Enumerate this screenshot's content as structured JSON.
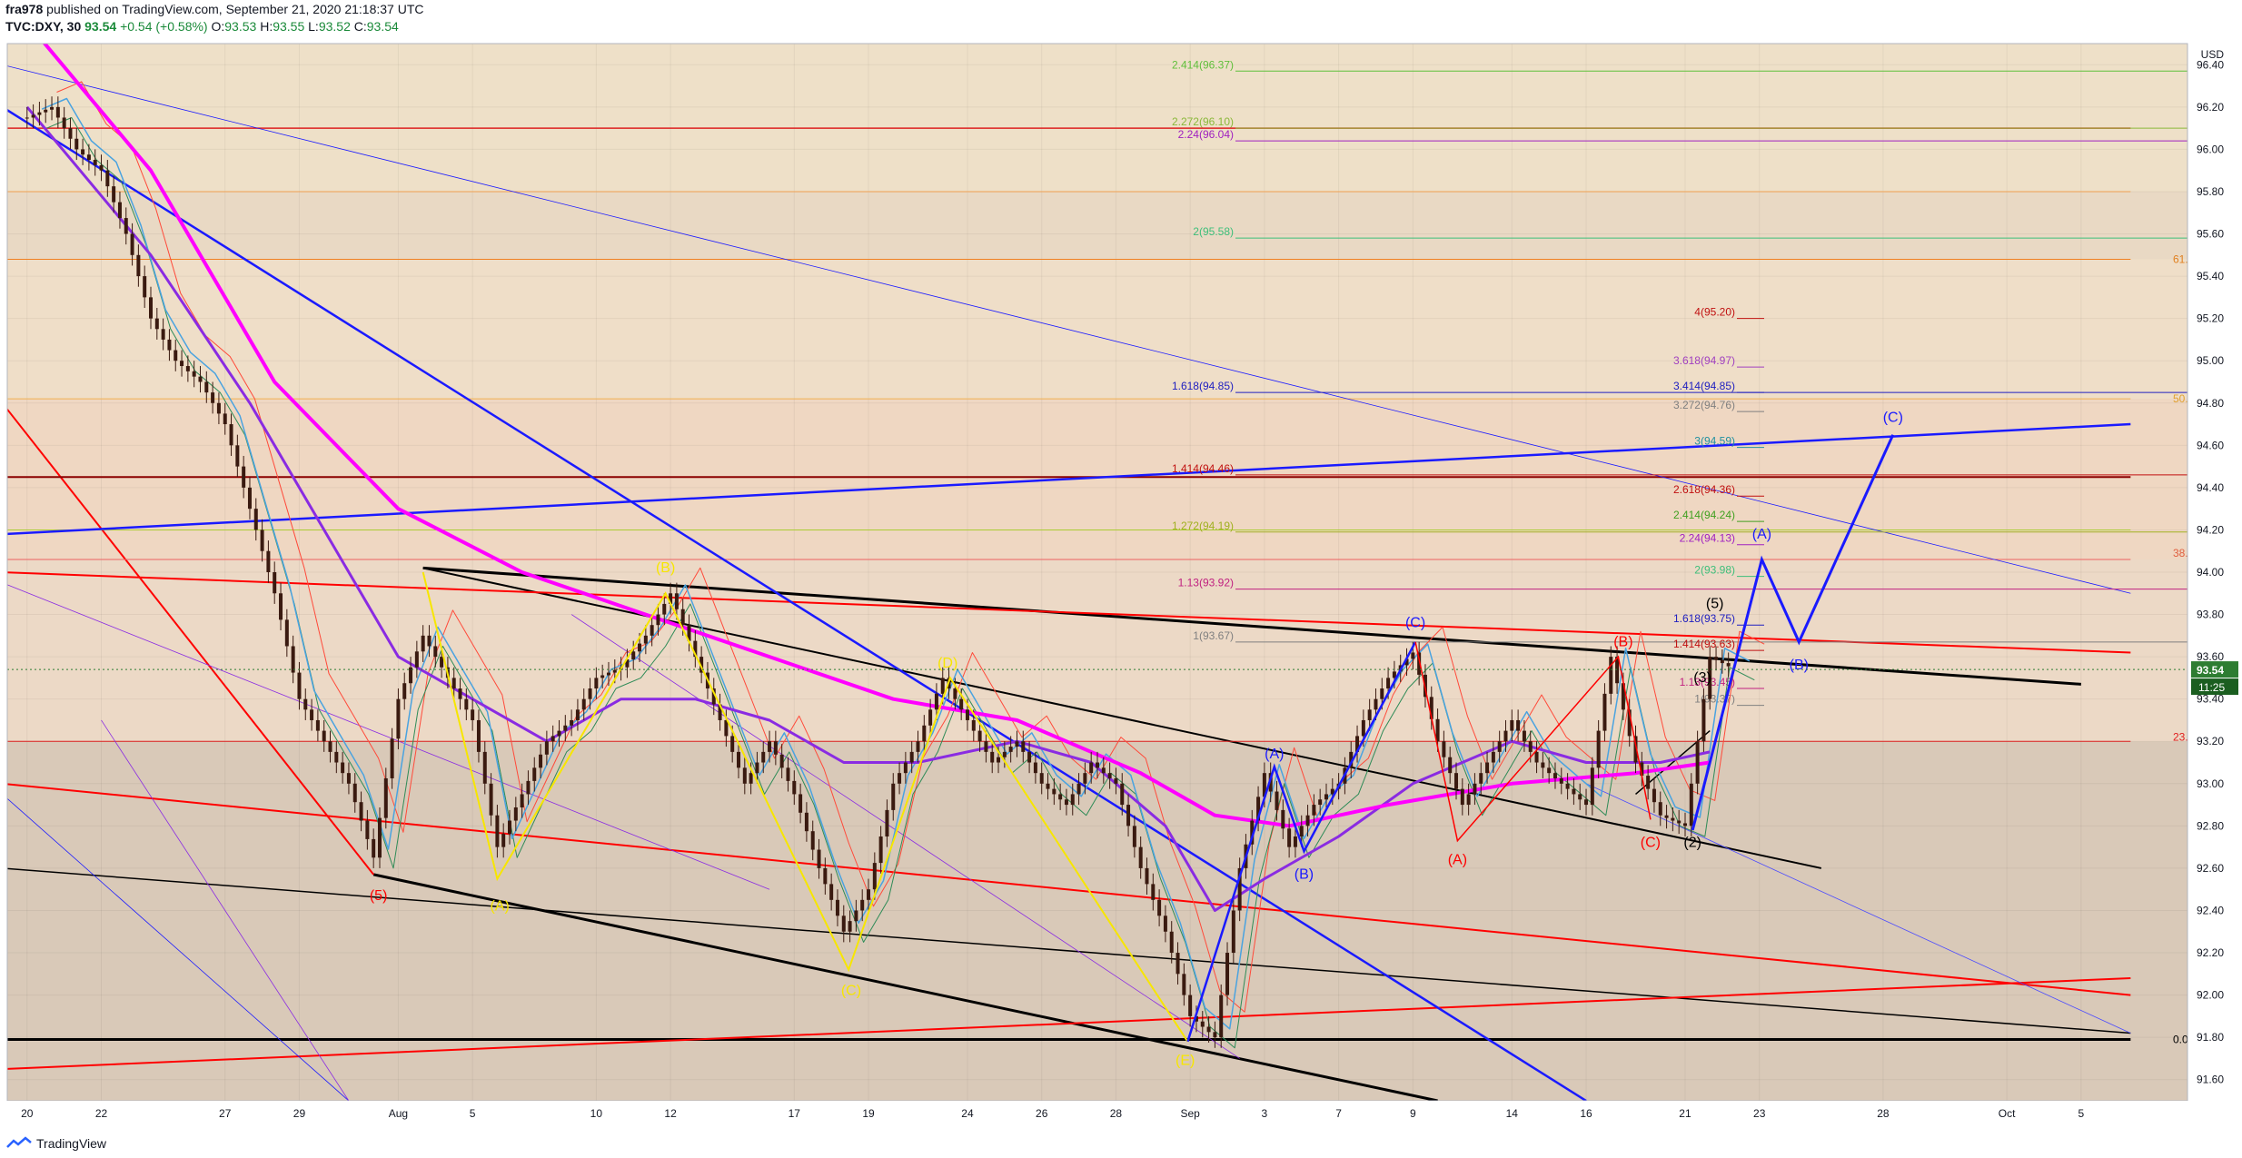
{
  "header": {
    "user": "fra978",
    "published_text": "published on TradingView.com, September 21, 2020 21:18:37 UTC",
    "symbol": "TVC:DXY, 30",
    "last": "93.54",
    "change": "+0.54 (+0.58%)",
    "o_label": "O:",
    "o": "93.53",
    "h_label": "H:",
    "h": "93.55",
    "l_label": "L:",
    "l": "93.52",
    "c_label": "C:",
    "c": "93.54"
  },
  "footer": {
    "logo_text": "TradingView",
    "logo_icon": "tradingview-logo-icon"
  },
  "colors": {
    "bull": "#1b8a3a",
    "price_badge": "#2e7d32",
    "magenta": "#ff00ff",
    "purple": "#8a2be2",
    "blue": "#1a1aff",
    "red": "#ff0000",
    "yellow": "#f7e600",
    "black": "#000000"
  },
  "chart_data": {
    "type": "line",
    "title": "",
    "xlabel": "",
    "ylabel": "",
    "currency_label": "USD",
    "ylim": [
      91.5,
      96.5
    ],
    "y_ticks": [
      "91.60",
      "91.80",
      "92.00",
      "92.20",
      "92.40",
      "92.60",
      "92.80",
      "93.00",
      "93.20",
      "93.40",
      "93.60",
      "93.80",
      "94.00",
      "94.20",
      "94.40",
      "94.60",
      "94.80",
      "95.00",
      "95.20",
      "95.40",
      "95.60",
      "95.80",
      "96.00",
      "96.20",
      "96.40"
    ],
    "x_ticks": [
      {
        "label": "20",
        "idx": 0
      },
      {
        "label": "22",
        "idx": 3
      },
      {
        "label": "27",
        "idx": 8
      },
      {
        "label": "29",
        "idx": 11
      },
      {
        "label": "Aug",
        "idx": 15
      },
      {
        "label": "5",
        "idx": 18
      },
      {
        "label": "10",
        "idx": 23
      },
      {
        "label": "12",
        "idx": 26
      },
      {
        "label": "17",
        "idx": 31
      },
      {
        "label": "19",
        "idx": 34
      },
      {
        "label": "24",
        "idx": 38
      },
      {
        "label": "26",
        "idx": 41
      },
      {
        "label": "28",
        "idx": 44
      },
      {
        "label": "Sep",
        "idx": 47
      },
      {
        "label": "3",
        "idx": 50
      },
      {
        "label": "7",
        "idx": 53
      },
      {
        "label": "9",
        "idx": 56
      },
      {
        "label": "14",
        "idx": 60
      },
      {
        "label": "16",
        "idx": 63
      },
      {
        "label": "21",
        "idx": 67
      },
      {
        "label": "23",
        "idx": 70
      },
      {
        "label": "28",
        "idx": 75
      },
      {
        "label": "Oct",
        "idx": 80
      },
      {
        "label": "5",
        "idx": 83
      }
    ],
    "x_index_range": [
      -0.8,
      87.3
    ],
    "price_badge": {
      "value": "93.54",
      "time_left": "11:25"
    },
    "price_path": [
      [
        0,
        96.15
      ],
      [
        1,
        96.2
      ],
      [
        2,
        96.0
      ],
      [
        3,
        95.9
      ],
      [
        4,
        95.6
      ],
      [
        5,
        95.2
      ],
      [
        6,
        95.0
      ],
      [
        7,
        94.9
      ],
      [
        8,
        94.7
      ],
      [
        9,
        94.3
      ],
      [
        10,
        93.9
      ],
      [
        11,
        93.4
      ],
      [
        12,
        93.2
      ],
      [
        13,
        93.0
      ],
      [
        14,
        92.65
      ],
      [
        15,
        93.4
      ],
      [
        16,
        93.7
      ],
      [
        17,
        93.5
      ],
      [
        18,
        93.3
      ],
      [
        19,
        92.7
      ],
      [
        20,
        92.95
      ],
      [
        21,
        93.2
      ],
      [
        22,
        93.3
      ],
      [
        23,
        93.5
      ],
      [
        24,
        93.55
      ],
      [
        25,
        93.7
      ],
      [
        26,
        93.9
      ],
      [
        27,
        93.6
      ],
      [
        28,
        93.3
      ],
      [
        29,
        93.0
      ],
      [
        30,
        93.2
      ],
      [
        31,
        92.95
      ],
      [
        32,
        92.6
      ],
      [
        33,
        92.3
      ],
      [
        34,
        92.5
      ],
      [
        35,
        93.0
      ],
      [
        36,
        93.2
      ],
      [
        37,
        93.5
      ],
      [
        38,
        93.3
      ],
      [
        39,
        93.1
      ],
      [
        40,
        93.2
      ],
      [
        41,
        93.0
      ],
      [
        42,
        92.9
      ],
      [
        43,
        93.1
      ],
      [
        44,
        93.0
      ],
      [
        45,
        92.6
      ],
      [
        46,
        92.3
      ],
      [
        47,
        91.9
      ],
      [
        48,
        91.8
      ],
      [
        49,
        92.6
      ],
      [
        50,
        93.05
      ],
      [
        51,
        92.7
      ],
      [
        52,
        92.9
      ],
      [
        53,
        93.0
      ],
      [
        54,
        93.3
      ],
      [
        55,
        93.5
      ],
      [
        56,
        93.62
      ],
      [
        57,
        93.2
      ],
      [
        58,
        92.9
      ],
      [
        59,
        93.1
      ],
      [
        60,
        93.3
      ],
      [
        61,
        93.1
      ],
      [
        62,
        93.0
      ],
      [
        63,
        92.9
      ],
      [
        64,
        93.6
      ],
      [
        65,
        93.1
      ],
      [
        66,
        92.85
      ],
      [
        67,
        92.8
      ],
      [
        68,
        93.6
      ],
      [
        69,
        93.54
      ]
    ],
    "ma_magenta": [
      [
        0,
        96.6
      ],
      [
        5,
        95.9
      ],
      [
        10,
        94.9
      ],
      [
        15,
        94.3
      ],
      [
        20,
        94.0
      ],
      [
        25,
        93.8
      ],
      [
        30,
        93.6
      ],
      [
        35,
        93.4
      ],
      [
        40,
        93.3
      ],
      [
        45,
        93.05
      ],
      [
        48,
        92.85
      ],
      [
        51,
        92.8
      ],
      [
        55,
        92.9
      ],
      [
        60,
        93.0
      ],
      [
        65,
        93.05
      ],
      [
        68,
        93.1
      ]
    ],
    "ma_purple": [
      [
        0,
        96.2
      ],
      [
        5,
        95.5
      ],
      [
        9,
        94.8
      ],
      [
        12,
        94.2
      ],
      [
        15,
        93.6
      ],
      [
        18,
        93.4
      ],
      [
        21,
        93.2
      ],
      [
        24,
        93.4
      ],
      [
        27,
        93.4
      ],
      [
        30,
        93.3
      ],
      [
        33,
        93.1
      ],
      [
        36,
        93.1
      ],
      [
        40,
        93.2
      ],
      [
        43,
        93.1
      ],
      [
        46,
        92.8
      ],
      [
        48,
        92.4
      ],
      [
        50,
        92.55
      ],
      [
        53,
        92.75
      ],
      [
        56,
        93.0
      ],
      [
        60,
        93.2
      ],
      [
        63,
        93.1
      ],
      [
        66,
        93.1
      ],
      [
        68,
        93.15
      ]
    ],
    "fib_levels": [
      {
        "label": "2.414(96.37)",
        "value": 96.37,
        "color": "#5fbf3a"
      },
      {
        "label": "2.272(96.10)",
        "value": 96.1,
        "color": "#8ab83a"
      },
      {
        "label": "2.24(96.04)",
        "value": 96.04,
        "color": "#a020c0"
      },
      {
        "label": "2(95.58)",
        "value": 95.58,
        "color": "#3dbf7a"
      },
      {
        "label": "1.618(94.85)",
        "value": 94.85,
        "color": "#2020c0"
      },
      {
        "label": "1.414(94.46)",
        "value": 94.46,
        "color": "#c01010"
      },
      {
        "label": "1.272(94.19)",
        "value": 94.19,
        "color": "#a0b020"
      },
      {
        "label": "1.13(93.92)",
        "value": 93.92,
        "color": "#c02080"
      },
      {
        "label": "1(93.67)",
        "value": 93.67,
        "color": "#808080"
      }
    ],
    "fib_levels_right": [
      {
        "label": "4(95.20)",
        "value": 95.2,
        "color": "#c01010"
      },
      {
        "label": "3.618(94.97)",
        "value": 94.97,
        "color": "#a040c0"
      },
      {
        "label": "3.414(94.85)",
        "value": 94.85,
        "color": "#2020c0"
      },
      {
        "label": "3.272(94.76)",
        "value": 94.76,
        "color": "#808080"
      },
      {
        "label": "3(94.59)",
        "value": 94.59,
        "color": "#2090a0"
      },
      {
        "label": "2.618(94.36)",
        "value": 94.36,
        "color": "#c01010"
      },
      {
        "label": "2.414(94.24)",
        "value": 94.24,
        "color": "#40a020"
      },
      {
        "label": "2.24(94.13)",
        "value": 94.13,
        "color": "#a020c0"
      },
      {
        "label": "2(93.98)",
        "value": 93.98,
        "color": "#3dbf7a"
      },
      {
        "label": "1.618(93.75)",
        "value": 93.75,
        "color": "#2020c0"
      },
      {
        "label": "1.414(93.63)",
        "value": 93.63,
        "color": "#c01010"
      },
      {
        "label": "1.13(93.45)",
        "value": 93.45,
        "color": "#c02080"
      },
      {
        "label": "1(93.37)",
        "value": 93.37,
        "color": "#808080"
      }
    ],
    "edge_labels": [
      {
        "label": "61.",
        "value": 95.48,
        "color": "#e08020"
      },
      {
        "label": "50.",
        "value": 94.82,
        "color": "#e0a030"
      },
      {
        "label": "38.",
        "value": 94.09,
        "color": "#e06040"
      },
      {
        "label": "23.",
        "value": 93.22,
        "color": "#e02020"
      },
      {
        "label": "0.0",
        "value": 91.79,
        "color": "#000000"
      }
    ],
    "waves": [
      {
        "label": "(5)",
        "idx": 14.2,
        "value": 92.45,
        "color": "#ff0000"
      },
      {
        "label": "(A)",
        "idx": 19.1,
        "value": 92.4,
        "color": "#f7e600"
      },
      {
        "label": "(B)",
        "idx": 25.8,
        "value": 94.0,
        "color": "#f7e600"
      },
      {
        "label": "(C)",
        "idx": 33.3,
        "value": 92.0,
        "color": "#f7e600"
      },
      {
        "label": "(D)",
        "idx": 37.2,
        "value": 93.55,
        "color": "#f7e600"
      },
      {
        "label": "(E)",
        "idx": 46.8,
        "value": 91.67,
        "color": "#f7e600"
      },
      {
        "label": "(A)",
        "idx": 50.4,
        "value": 93.12,
        "color": "#1a1aff"
      },
      {
        "label": "(B)",
        "idx": 51.6,
        "value": 92.55,
        "color": "#1a1aff"
      },
      {
        "label": "(C)",
        "idx": 56.1,
        "value": 93.74,
        "color": "#1a1aff"
      },
      {
        "label": "(A)",
        "idx": 57.8,
        "value": 92.62,
        "color": "#ff0000"
      },
      {
        "label": "(B)",
        "idx": 64.5,
        "value": 93.65,
        "color": "#ff0000"
      },
      {
        "label": "(C)",
        "idx": 65.6,
        "value": 92.7,
        "color": "#ff0000"
      },
      {
        "label": "(2)",
        "idx": 67.3,
        "value": 92.7,
        "color": "#000000"
      },
      {
        "label": "(3)",
        "idx": 67.7,
        "value": 93.48,
        "color": "#000000"
      },
      {
        "label": "(5)",
        "idx": 68.2,
        "value": 93.83,
        "color": "#000000"
      },
      {
        "label": "(A)",
        "idx": 70.1,
        "value": 94.16,
        "color": "#1a1aff"
      },
      {
        "label": "(B)",
        "idx": 71.6,
        "value": 93.54,
        "color": "#1a1aff"
      },
      {
        "label": "(C)",
        "idx": 75.4,
        "value": 94.71,
        "color": "#1a1aff"
      }
    ],
    "trend_lines": [
      {
        "pts": [
          [
            -1,
            91.79
          ],
          [
            85,
            91.79
          ]
        ],
        "color": "#000000",
        "w": 3
      },
      {
        "pts": [
          [
            16,
            94.02
          ],
          [
            83,
            93.47
          ]
        ],
        "color": "#000000",
        "w": 3
      },
      {
        "pts": [
          [
            14,
            92.57
          ],
          [
            57,
            91.5
          ]
        ],
        "color": "#000000",
        "w": 3
      },
      {
        "pts": [
          [
            16,
            94.02
          ],
          [
            72.5,
            92.6
          ]
        ],
        "color": "#000000",
        "w": 2
      },
      {
        "pts": [
          [
            -1,
            92.6
          ],
          [
            85,
            91.82
          ]
        ],
        "color": "#000000",
        "w": 1.5
      },
      {
        "pts": [
          [
            65,
            92.95
          ],
          [
            68,
            93.25
          ]
        ],
        "color": "#000000",
        "w": 1.5
      },
      {
        "pts": [
          [
            -1,
            94.0
          ],
          [
            85,
            93.62
          ]
        ],
        "color": "#ff0000",
        "w": 2
      },
      {
        "pts": [
          [
            -1,
            93.0
          ],
          [
            85,
            92.0
          ]
        ],
        "color": "#ff0000",
        "w": 2
      },
      {
        "pts": [
          [
            -1,
            91.65
          ],
          [
            85,
            92.08
          ]
        ],
        "color": "#ff0000",
        "w": 2
      },
      {
        "pts": [
          [
            -1,
            94.8
          ],
          [
            14,
            92.57
          ]
        ],
        "color": "#ff0000",
        "w": 2
      },
      {
        "pts": [
          [
            -1,
            94.45
          ],
          [
            85,
            94.45
          ]
        ],
        "color": "#8b0000",
        "w": 2
      },
      {
        "pts": [
          [
            -1,
            96.1
          ],
          [
            85,
            96.1
          ]
        ],
        "color": "#dd2020",
        "w": 1.5
      },
      {
        "pts": [
          [
            -1,
            93.2
          ],
          [
            85,
            93.2
          ]
        ],
        "color": "#dd2020",
        "w": 1
      },
      {
        "pts": [
          [
            -1,
            94.06
          ],
          [
            85,
            94.06
          ]
        ],
        "color": "#ee6060",
        "w": 1
      },
      {
        "pts": [
          [
            -1,
            94.2
          ],
          [
            85,
            94.2
          ]
        ],
        "color": "#aacc33",
        "w": 1
      },
      {
        "pts": [
          [
            -1,
            95.8
          ],
          [
            85,
            95.8
          ]
        ],
        "color": "#f0a050",
        "w": 1
      },
      {
        "pts": [
          [
            -1,
            95.48
          ],
          [
            85,
            95.48
          ]
        ],
        "color": "#f08020",
        "w": 1
      },
      {
        "pts": [
          [
            -1,
            94.82
          ],
          [
            85,
            94.82
          ]
        ],
        "color": "#f0b050",
        "w": 1
      },
      {
        "pts": [
          [
            -1,
            96.4
          ],
          [
            85,
            93.9
          ]
        ],
        "color": "#1a1aff",
        "w": 0.8
      },
      {
        "pts": [
          [
            -1,
            96.2
          ],
          [
            63,
            91.5
          ]
        ],
        "color": "#1a1aff",
        "w": 2.5
      },
      {
        "pts": [
          [
            -1,
            94.18
          ],
          [
            85,
            94.7
          ]
        ],
        "color": "#1a1aff",
        "w": 2.5
      },
      {
        "pts": [
          [
            -1,
            92.95
          ],
          [
            13,
            91.5
          ]
        ],
        "color": "#1a1aff",
        "w": 0.8
      },
      {
        "pts": [
          [
            -1,
            93.95
          ],
          [
            30,
            92.5
          ]
        ],
        "color": "#8a2be2",
        "w": 0.8
      },
      {
        "pts": [
          [
            3,
            93.3
          ],
          [
            13,
            91.5
          ]
        ],
        "color": "#8a2be2",
        "w": 0.8
      },
      {
        "pts": [
          [
            22,
            93.8
          ],
          [
            49,
            91.7
          ]
        ],
        "color": "#8a2be2",
        "w": 0.8
      },
      {
        "pts": [
          [
            63,
            93.0
          ],
          [
            85,
            91.82
          ]
        ],
        "color": "#4a4aff",
        "w": 0.8
      }
    ],
    "wave_paths": [
      {
        "pts": [
          [
            16,
            94.0
          ],
          [
            19,
            92.55
          ],
          [
            25.8,
            93.9
          ],
          [
            33.2,
            92.12
          ],
          [
            37.3,
            93.5
          ],
          [
            46.9,
            91.78
          ]
        ],
        "color": "#f7e600",
        "w": 2
      },
      {
        "pts": [
          [
            46.9,
            91.78
          ],
          [
            50.4,
            93.08
          ],
          [
            51.6,
            92.68
          ],
          [
            56.1,
            93.67
          ]
        ],
        "color": "#1a1aff",
        "w": 2.5
      },
      {
        "pts": [
          [
            56.1,
            93.67
          ],
          [
            57.8,
            92.73
          ],
          [
            64.3,
            93.6
          ],
          [
            65.6,
            92.83
          ]
        ],
        "color": "#ff0000",
        "w": 1.5
      },
      {
        "pts": [
          [
            67.3,
            92.78
          ],
          [
            70.1,
            94.06
          ],
          [
            71.6,
            93.67
          ],
          [
            75.4,
            94.65
          ]
        ],
        "color": "#1a1aff",
        "w": 3
      }
    ],
    "bands": [
      {
        "y0": 91.5,
        "y1": 93.2,
        "color": "#d9c9b8"
      },
      {
        "y0": 93.2,
        "y1": 94.06,
        "color": "#ecd9c6"
      },
      {
        "y0": 94.06,
        "y1": 94.82,
        "color": "#efd7c2"
      },
      {
        "y0": 94.82,
        "y1": 95.48,
        "color": "#efdec8"
      },
      {
        "y0": 95.48,
        "y1": 95.8,
        "color": "#e9d9c4"
      },
      {
        "y0": 95.8,
        "y1": 96.5,
        "color": "#eee0c8"
      }
    ]
  }
}
